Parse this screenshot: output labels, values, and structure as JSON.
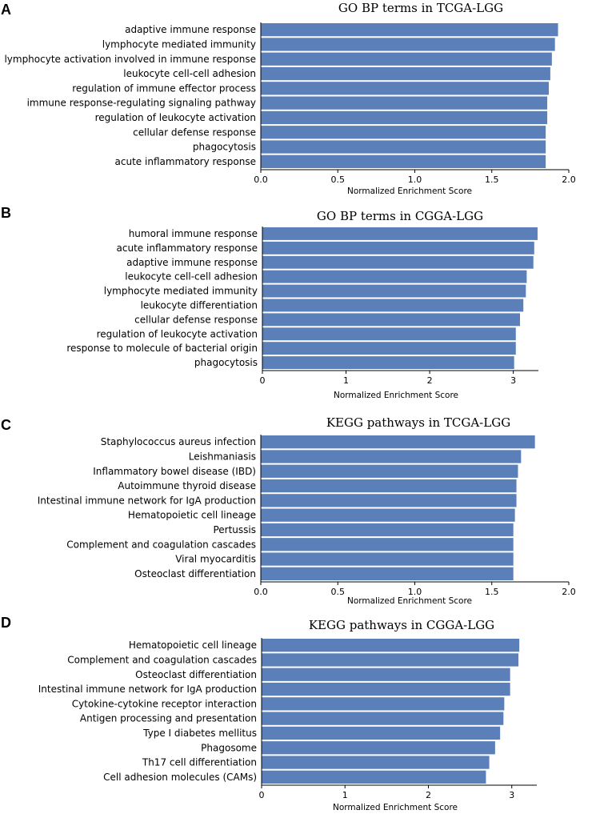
{
  "colors": {
    "bar": "#5b7fb8",
    "axis": "#000000"
  },
  "chart_data": [
    {
      "panel": "A",
      "type": "bar",
      "orientation": "horizontal",
      "title": "GO BP terms in TCGA-LGG",
      "xlabel": "Normalized Enrichment Score",
      "xlim": [
        0,
        2.0
      ],
      "ticks": [
        0,
        0.5,
        1,
        1.5,
        2
      ],
      "tick_labels": [
        "0.0",
        "0.5",
        "1.0",
        "1.5",
        "2.0"
      ],
      "categories": [
        "adaptive immune response",
        "lymphocyte mediated immunity",
        "lymphocyte activation involved in immune response",
        "leukocyte cell-cell adhesion",
        "regulation of immune effector process",
        "immune response-regulating signaling pathway",
        "regulation of leukocyte activation",
        "cellular defense response",
        "phagocytosis",
        "acute inflammatory response"
      ],
      "values": [
        1.93,
        1.91,
        1.89,
        1.88,
        1.87,
        1.86,
        1.86,
        1.85,
        1.85,
        1.85
      ]
    },
    {
      "panel": "B",
      "type": "bar",
      "orientation": "horizontal",
      "title": "GO BP terms in CGGA-LGG",
      "xlabel": "Normalized Enrichment Score",
      "xlim": [
        0,
        3.3
      ],
      "ticks": [
        0,
        1,
        2,
        3
      ],
      "tick_labels": [
        "0",
        "1",
        "2",
        "3"
      ],
      "categories": [
        "humoral immune response",
        "acute inflammatory response",
        "adaptive immune response",
        "leukocyte cell-cell adhesion",
        "lymphocyte mediated immunity",
        "leukocyte differentiation",
        "cellular defense response",
        "regulation of leukocyte activation",
        "response to molecule of bacterial origin",
        "phagocytosis"
      ],
      "values": [
        3.29,
        3.25,
        3.24,
        3.16,
        3.15,
        3.12,
        3.08,
        3.03,
        3.03,
        3.01
      ]
    },
    {
      "panel": "C",
      "type": "bar",
      "orientation": "horizontal",
      "title": "KEGG pathways in TCGA-LGG",
      "xlabel": "Normalized Enrichment Score",
      "xlim": [
        0,
        2.0
      ],
      "ticks": [
        0,
        0.5,
        1,
        1.5,
        2
      ],
      "tick_labels": [
        "0.0",
        "0.5",
        "1.0",
        "1.5",
        "2.0"
      ],
      "categories": [
        "Staphylococcus aureus infection",
        "Leishmaniasis",
        "Inflammatory bowel disease (IBD)",
        "Autoimmune thyroid disease",
        "Intestinal immune network for IgA production",
        "Hematopoietic cell lineage",
        "Pertussis",
        "Complement and coagulation cascades",
        "Viral myocarditis",
        "Osteoclast differentiation"
      ],
      "values": [
        1.78,
        1.69,
        1.67,
        1.66,
        1.66,
        1.65,
        1.64,
        1.64,
        1.64,
        1.64
      ]
    },
    {
      "panel": "D",
      "type": "bar",
      "orientation": "horizontal",
      "title": "KEGG pathways in CGGA-LGG",
      "xlabel": "Normalized Enrichment Score",
      "xlim": [
        0,
        3.3
      ],
      "ticks": [
        0,
        1,
        2,
        3
      ],
      "tick_labels": [
        "0",
        "1",
        "2",
        "3"
      ],
      "categories": [
        "Hematopoietic cell lineage",
        "Complement and coagulation cascades",
        "Osteoclast differentiation",
        "Intestinal immune network for IgA production",
        "Cytokine-cytokine receptor interaction",
        "Antigen processing and presentation",
        "Type I diabetes mellitus",
        "Phagosome",
        "Th17 cell differentiation",
        "Cell adhesion molecules (CAMs)"
      ],
      "values": [
        3.09,
        3.08,
        2.98,
        2.98,
        2.91,
        2.9,
        2.86,
        2.8,
        2.73,
        2.69
      ]
    }
  ]
}
